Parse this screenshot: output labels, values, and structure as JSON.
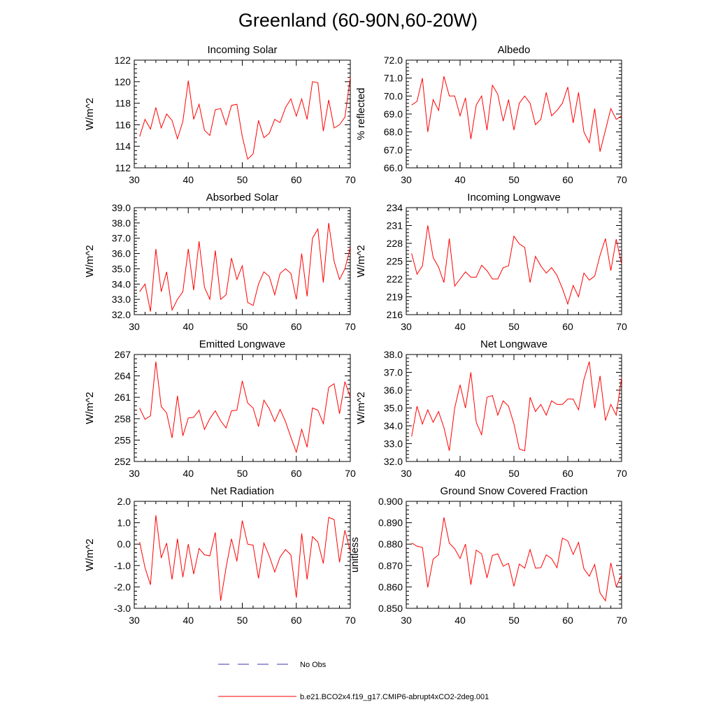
{
  "title": "Greenland (60-90N,60-20W)",
  "legend": [
    {
      "label": "No Obs",
      "color": "#3a3aa8",
      "dash": true
    },
    {
      "label": "b.e21.BCO2x4.f19_g17.CMIP6-abrupt4xCO2-2deg.001",
      "color": "#ff0000",
      "dash": false
    }
  ],
  "chart_data": [
    {
      "type": "line",
      "title": "Incoming Solar",
      "ylabel": "W/m^2",
      "xlim": [
        30,
        70
      ],
      "ylim": [
        112,
        122
      ],
      "xticks": [
        "30",
        "40",
        "50",
        "60",
        "70"
      ],
      "yticks": [
        "112",
        "114",
        "116",
        "118",
        "120",
        "122"
      ],
      "x": [
        31,
        32,
        33,
        34,
        35,
        36,
        37,
        38,
        39,
        40,
        41,
        42,
        43,
        44,
        45,
        46,
        47,
        48,
        49,
        50,
        51,
        52,
        53,
        54,
        55,
        56,
        57,
        58,
        59,
        60,
        61,
        62,
        63,
        64,
        65,
        66,
        67,
        68,
        69,
        70
      ],
      "series": [
        {
          "color": "#ff0000",
          "values": [
            114.9,
            116.5,
            115.6,
            117.6,
            115.7,
            117.0,
            116.4,
            114.7,
            116.3,
            120.1,
            116.5,
            117.9,
            115.5,
            115.0,
            117.4,
            117.5,
            116.0,
            117.8,
            117.9,
            114.9,
            112.8,
            113.3,
            116.4,
            114.8,
            115.2,
            116.5,
            116.2,
            117.6,
            118.4,
            116.8,
            118.4,
            116.5,
            120.0,
            119.9,
            115.4,
            118.3,
            115.7,
            116.0,
            116.7,
            120.4
          ]
        }
      ]
    },
    {
      "type": "line",
      "title": "Albedo",
      "ylabel": "% reflected",
      "xlim": [
        30,
        70
      ],
      "ylim": [
        66,
        72
      ],
      "xticks": [
        "30",
        "40",
        "50",
        "60",
        "70"
      ],
      "yticks": [
        "66.0",
        "67.0",
        "68.0",
        "69.0",
        "70.0",
        "71.0",
        "72.0"
      ],
      "x": [
        31,
        32,
        33,
        34,
        35,
        36,
        37,
        38,
        39,
        40,
        41,
        42,
        43,
        44,
        45,
        46,
        47,
        48,
        49,
        50,
        51,
        52,
        53,
        54,
        55,
        56,
        57,
        58,
        59,
        60,
        61,
        62,
        63,
        64,
        65,
        66,
        67,
        68,
        69,
        70
      ],
      "series": [
        {
          "color": "#ff0000",
          "values": [
            69.5,
            69.7,
            71.0,
            68.0,
            69.8,
            69.2,
            71.1,
            70.0,
            70.0,
            68.9,
            69.9,
            67.6,
            69.5,
            70.0,
            68.1,
            70.6,
            70.1,
            68.6,
            69.8,
            68.1,
            69.6,
            70.0,
            69.6,
            68.4,
            68.7,
            70.2,
            68.9,
            69.2,
            69.6,
            70.5,
            68.5,
            70.2,
            68.0,
            67.4,
            69.3,
            66.9,
            68.1,
            69.3,
            68.7,
            68.9
          ]
        }
      ]
    },
    {
      "type": "line",
      "title": "Absorbed Solar",
      "ylabel": "W/m^2",
      "xlim": [
        30,
        70
      ],
      "ylim": [
        32,
        39
      ],
      "xticks": [
        "30",
        "40",
        "50",
        "60",
        "70"
      ],
      "yticks": [
        "32.0",
        "33.0",
        "34.0",
        "35.0",
        "36.0",
        "37.0",
        "38.0",
        "39.0"
      ],
      "x": [
        31,
        32,
        33,
        34,
        35,
        36,
        37,
        38,
        39,
        40,
        41,
        42,
        43,
        44,
        45,
        46,
        47,
        48,
        49,
        50,
        51,
        52,
        53,
        54,
        55,
        56,
        57,
        58,
        59,
        60,
        61,
        62,
        63,
        64,
        65,
        66,
        67,
        68,
        69,
        70
      ],
      "series": [
        {
          "color": "#ff0000",
          "values": [
            33.5,
            34.0,
            32.2,
            36.3,
            33.5,
            34.8,
            32.3,
            33.0,
            33.5,
            36.3,
            33.6,
            36.8,
            33.8,
            33.0,
            36.2,
            33.0,
            33.3,
            35.7,
            34.3,
            35.2,
            32.8,
            32.6,
            34.0,
            34.8,
            34.5,
            33.3,
            34.7,
            35.0,
            34.7,
            33.0,
            36.0,
            33.2,
            37.0,
            37.6,
            34.1,
            38.0,
            35.5,
            34.3,
            35.0,
            36.4
          ]
        }
      ]
    },
    {
      "type": "line",
      "title": "Incoming Longwave",
      "ylabel": "W/m^2",
      "xlim": [
        30,
        70
      ],
      "ylim": [
        216,
        234
      ],
      "xticks": [
        "30",
        "40",
        "50",
        "60",
        "70"
      ],
      "yticks": [
        "216",
        "219",
        "222",
        "225",
        "228",
        "231",
        "234"
      ],
      "x": [
        31,
        32,
        33,
        34,
        35,
        36,
        37,
        38,
        39,
        40,
        41,
        42,
        43,
        44,
        45,
        46,
        47,
        48,
        49,
        50,
        51,
        52,
        53,
        54,
        55,
        56,
        57,
        58,
        59,
        60,
        61,
        62,
        63,
        64,
        65,
        66,
        67,
        68,
        69,
        70
      ],
      "series": [
        {
          "color": "#ff0000",
          "values": [
            226.3,
            222.8,
            224.2,
            231.0,
            225.6,
            224.0,
            221.4,
            228.8,
            220.8,
            222.0,
            223.2,
            222.3,
            222.3,
            224.3,
            223.4,
            222.0,
            222.0,
            223.9,
            224.2,
            229.2,
            227.9,
            227.3,
            221.4,
            225.8,
            224.2,
            223.0,
            223.9,
            222.6,
            220.4,
            217.8,
            220.9,
            219.0,
            223.0,
            221.8,
            222.5,
            226.0,
            228.8,
            223.4,
            228.7,
            224.5
          ]
        }
      ]
    },
    {
      "type": "line",
      "title": "Emitted Longwave",
      "ylabel": "W/m^2",
      "xlim": [
        30,
        70
      ],
      "ylim": [
        252,
        267
      ],
      "xticks": [
        "30",
        "40",
        "50",
        "60",
        "70"
      ],
      "yticks": [
        "252",
        "255",
        "258",
        "261",
        "264",
        "267"
      ],
      "x": [
        31,
        32,
        33,
        34,
        35,
        36,
        37,
        38,
        39,
        40,
        41,
        42,
        43,
        44,
        45,
        46,
        47,
        48,
        49,
        50,
        51,
        52,
        53,
        54,
        55,
        56,
        57,
        58,
        59,
        60,
        61,
        62,
        63,
        64,
        65,
        66,
        67,
        68,
        69,
        70
      ],
      "series": [
        {
          "color": "#ff0000",
          "values": [
            259.5,
            257.9,
            258.4,
            266.0,
            259.7,
            258.8,
            255.3,
            261.2,
            255.6,
            258.1,
            258.2,
            259.2,
            256.5,
            258.0,
            259.1,
            257.7,
            256.7,
            259.1,
            259.2,
            263.3,
            260.2,
            259.5,
            256.9,
            260.6,
            259.4,
            257.6,
            259.3,
            257.6,
            255.4,
            253.3,
            256.5,
            254.0,
            259.5,
            259.2,
            257.3,
            262.4,
            262.9,
            258.7,
            263.2,
            261.0
          ]
        }
      ]
    },
    {
      "type": "line",
      "title": "Net Longwave",
      "ylabel": "W/m^2",
      "xlim": [
        30,
        70
      ],
      "ylim": [
        32,
        38
      ],
      "xticks": [
        "30",
        "40",
        "50",
        "60",
        "70"
      ],
      "yticks": [
        "32.0",
        "33.0",
        "34.0",
        "35.0",
        "36.0",
        "37.0",
        "38.0"
      ],
      "x": [
        31,
        32,
        33,
        34,
        35,
        36,
        37,
        38,
        39,
        40,
        41,
        42,
        43,
        44,
        45,
        46,
        47,
        48,
        49,
        50,
        51,
        52,
        53,
        54,
        55,
        56,
        57,
        58,
        59,
        60,
        61,
        62,
        63,
        64,
        65,
        66,
        67,
        68,
        69,
        70
      ],
      "series": [
        {
          "color": "#ff0000",
          "values": [
            33.4,
            35.1,
            34.1,
            34.9,
            34.2,
            34.8,
            33.9,
            32.6,
            35.0,
            36.3,
            35.0,
            37.0,
            34.2,
            33.5,
            35.6,
            35.7,
            34.6,
            35.4,
            35.1,
            34.1,
            32.7,
            32.6,
            35.6,
            34.8,
            35.2,
            34.6,
            35.4,
            35.2,
            35.2,
            35.5,
            35.5,
            34.9,
            36.6,
            37.6,
            35.0,
            36.8,
            34.3,
            35.2,
            34.6,
            36.7
          ]
        }
      ]
    },
    {
      "type": "line",
      "title": "Net Radiation",
      "ylabel": "W/m^2",
      "xlim": [
        30,
        70
      ],
      "ylim": [
        -3,
        2
      ],
      "xticks": [
        "30",
        "40",
        "50",
        "60",
        "70"
      ],
      "yticks": [
        "-3.0",
        "-2.0",
        "-1.0",
        "0.0",
        "1.0",
        "2.0"
      ],
      "x": [
        31,
        32,
        33,
        34,
        35,
        36,
        37,
        38,
        39,
        40,
        41,
        42,
        43,
        44,
        45,
        46,
        47,
        48,
        49,
        50,
        51,
        52,
        53,
        54,
        55,
        56,
        57,
        58,
        59,
        60,
        61,
        62,
        63,
        64,
        65,
        66,
        67,
        68,
        69,
        70
      ],
      "series": [
        {
          "color": "#ff0000",
          "values": [
            0.1,
            -1.1,
            -1.9,
            1.35,
            -0.65,
            0.05,
            -1.65,
            0.25,
            -1.55,
            0.0,
            -1.4,
            -0.2,
            -0.5,
            -0.55,
            0.55,
            -2.65,
            -1.1,
            0.25,
            -0.8,
            1.1,
            0.0,
            -0.05,
            -1.6,
            0.05,
            -0.55,
            -1.3,
            -0.6,
            -0.25,
            -0.5,
            -2.5,
            0.5,
            -1.65,
            0.35,
            0.1,
            -0.9,
            1.25,
            1.15,
            -0.85,
            0.65,
            -0.35
          ]
        }
      ]
    },
    {
      "type": "line",
      "title": "Ground Snow Covered Fraction",
      "ylabel": "unitless",
      "xlim": [
        30,
        70
      ],
      "ylim": [
        0.85,
        0.9
      ],
      "xticks": [
        "30",
        "40",
        "50",
        "60",
        "70"
      ],
      "yticks": [
        "0.850",
        "0.860",
        "0.870",
        "0.880",
        "0.890",
        "0.900"
      ],
      "x": [
        31,
        32,
        33,
        34,
        35,
        36,
        37,
        38,
        39,
        40,
        41,
        42,
        43,
        44,
        45,
        46,
        47,
        48,
        49,
        50,
        51,
        52,
        53,
        54,
        55,
        56,
        57,
        58,
        59,
        60,
        61,
        62,
        63,
        64,
        65,
        66,
        67,
        68,
        69,
        70
      ],
      "series": [
        {
          "color": "#ff0000",
          "values": [
            0.8806,
            0.879,
            0.8785,
            0.8598,
            0.873,
            0.875,
            0.8925,
            0.8805,
            0.8778,
            0.8733,
            0.88,
            0.861,
            0.8772,
            0.8755,
            0.8642,
            0.8747,
            0.8755,
            0.8697,
            0.871,
            0.8603,
            0.8707,
            0.8688,
            0.8775,
            0.8688,
            0.869,
            0.875,
            0.8732,
            0.869,
            0.8828,
            0.8815,
            0.8752,
            0.8808,
            0.8685,
            0.865,
            0.8705,
            0.8572,
            0.8535,
            0.8712,
            0.8602,
            0.8655
          ]
        }
      ]
    }
  ]
}
